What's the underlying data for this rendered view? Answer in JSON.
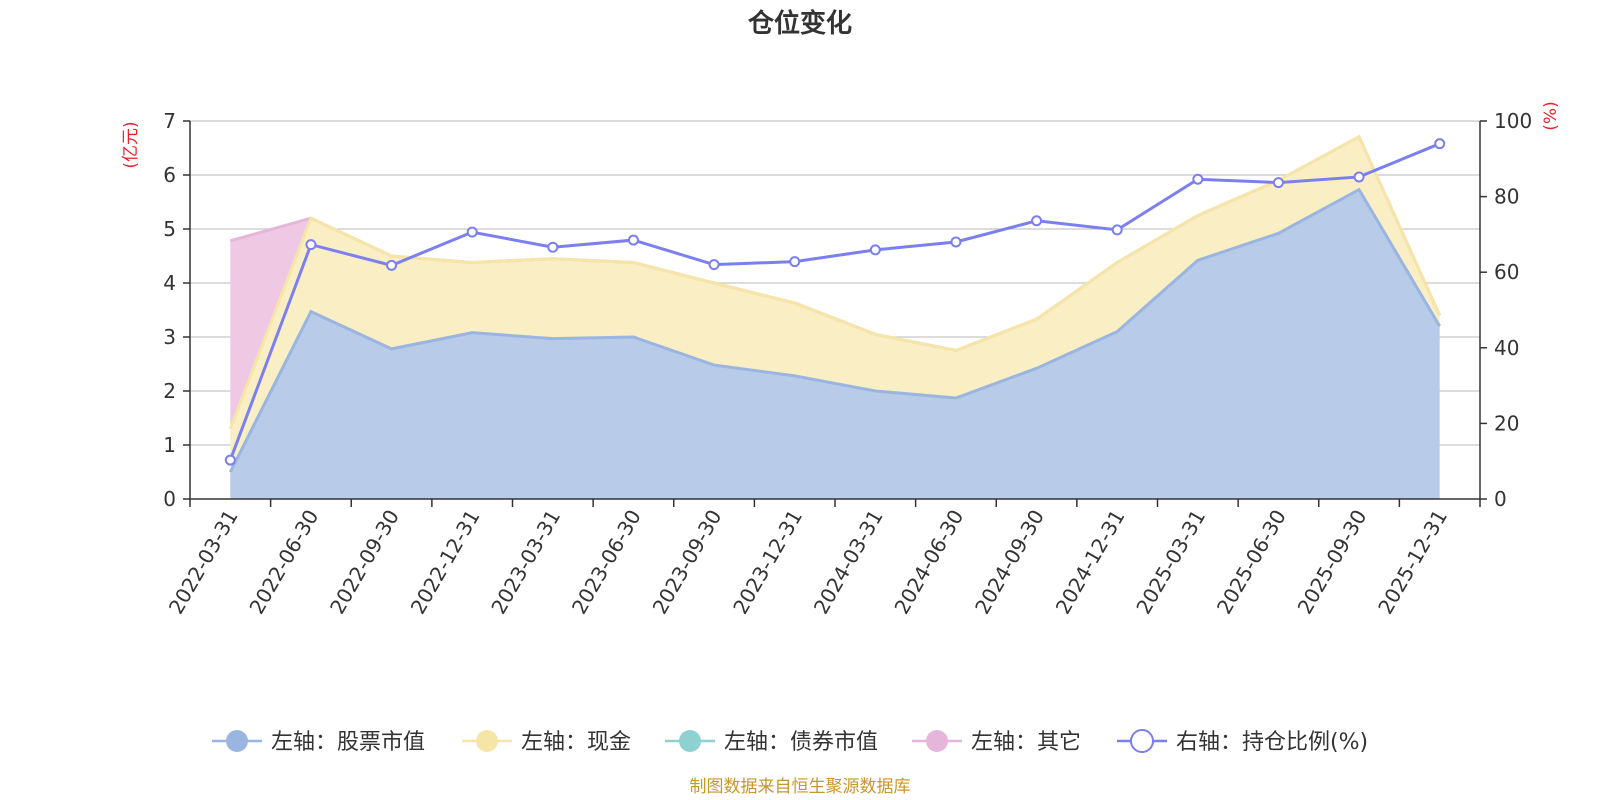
{
  "chart_data": {
    "type": "area",
    "title": "仓位变化",
    "left_axis": {
      "unit": "(亿元)",
      "ylim": [
        0,
        7
      ],
      "ticks": [
        "0",
        "1",
        "2",
        "3",
        "4",
        "5",
        "6",
        "7"
      ]
    },
    "right_axis": {
      "unit": "(%)",
      "ylim": [
        0,
        100
      ],
      "ticks": [
        "0",
        "20",
        "40",
        "60",
        "80",
        "100"
      ]
    },
    "categories": [
      "2022-03-31",
      "2022-06-30",
      "2022-09-30",
      "2022-12-31",
      "2023-03-31",
      "2023-06-30",
      "2023-09-30",
      "2023-12-31",
      "2024-03-31",
      "2024-06-30",
      "2024-09-30",
      "2024-12-31",
      "2025-03-31",
      "2025-06-30",
      "2025-09-30",
      "2025-12-31"
    ],
    "series": [
      {
        "name": "左轴：股票市值",
        "axis": "left",
        "values": [
          0.5,
          3.47,
          2.78,
          3.08,
          2.97,
          3.0,
          2.48,
          2.28,
          2.0,
          1.87,
          2.42,
          3.1,
          4.42,
          4.92,
          5.73,
          3.2
        ]
      },
      {
        "name": "左轴：现金",
        "axis": "left",
        "values": [
          0.8,
          1.73,
          1.72,
          1.3,
          1.48,
          1.38,
          1.52,
          1.35,
          1.05,
          0.88,
          0.91,
          1.28,
          0.83,
          0.98,
          0.98,
          0.2
        ]
      },
      {
        "name": "左轴：债券市值",
        "axis": "left",
        "values": [
          0,
          0,
          0,
          0,
          0,
          0,
          0,
          0,
          0,
          0,
          0,
          0,
          0,
          0,
          0,
          0
        ]
      },
      {
        "name": "左轴：其它",
        "axis": "left",
        "values": [
          3.48,
          0,
          0,
          0,
          0,
          0,
          0,
          0,
          0,
          0,
          0,
          0,
          0,
          0,
          0,
          0
        ]
      },
      {
        "name": "右轴：持仓比例(%)",
        "axis": "right",
        "values": [
          10.3,
          67.3,
          61.8,
          70.6,
          66.6,
          68.5,
          62.0,
          62.8,
          65.9,
          68.0,
          73.6,
          71.2,
          84.6,
          83.7,
          85.2,
          94.0
        ]
      }
    ],
    "colors": {
      "stock_line": "#9ab5e0",
      "stock_fill": "#b8cbe9",
      "cash_line": "#f5e6a8",
      "cash_fill": "#faefc4",
      "bond_line": "#8fd0d0",
      "other_line": "#e6b6da",
      "other_fill": "#efc9e3",
      "ratio_line": "#7b7ff0",
      "grid": "#c8c8c8",
      "axis": "#333333"
    },
    "legend_position": "bottom",
    "source_note": "制图数据来自恒生聚源数据库"
  }
}
